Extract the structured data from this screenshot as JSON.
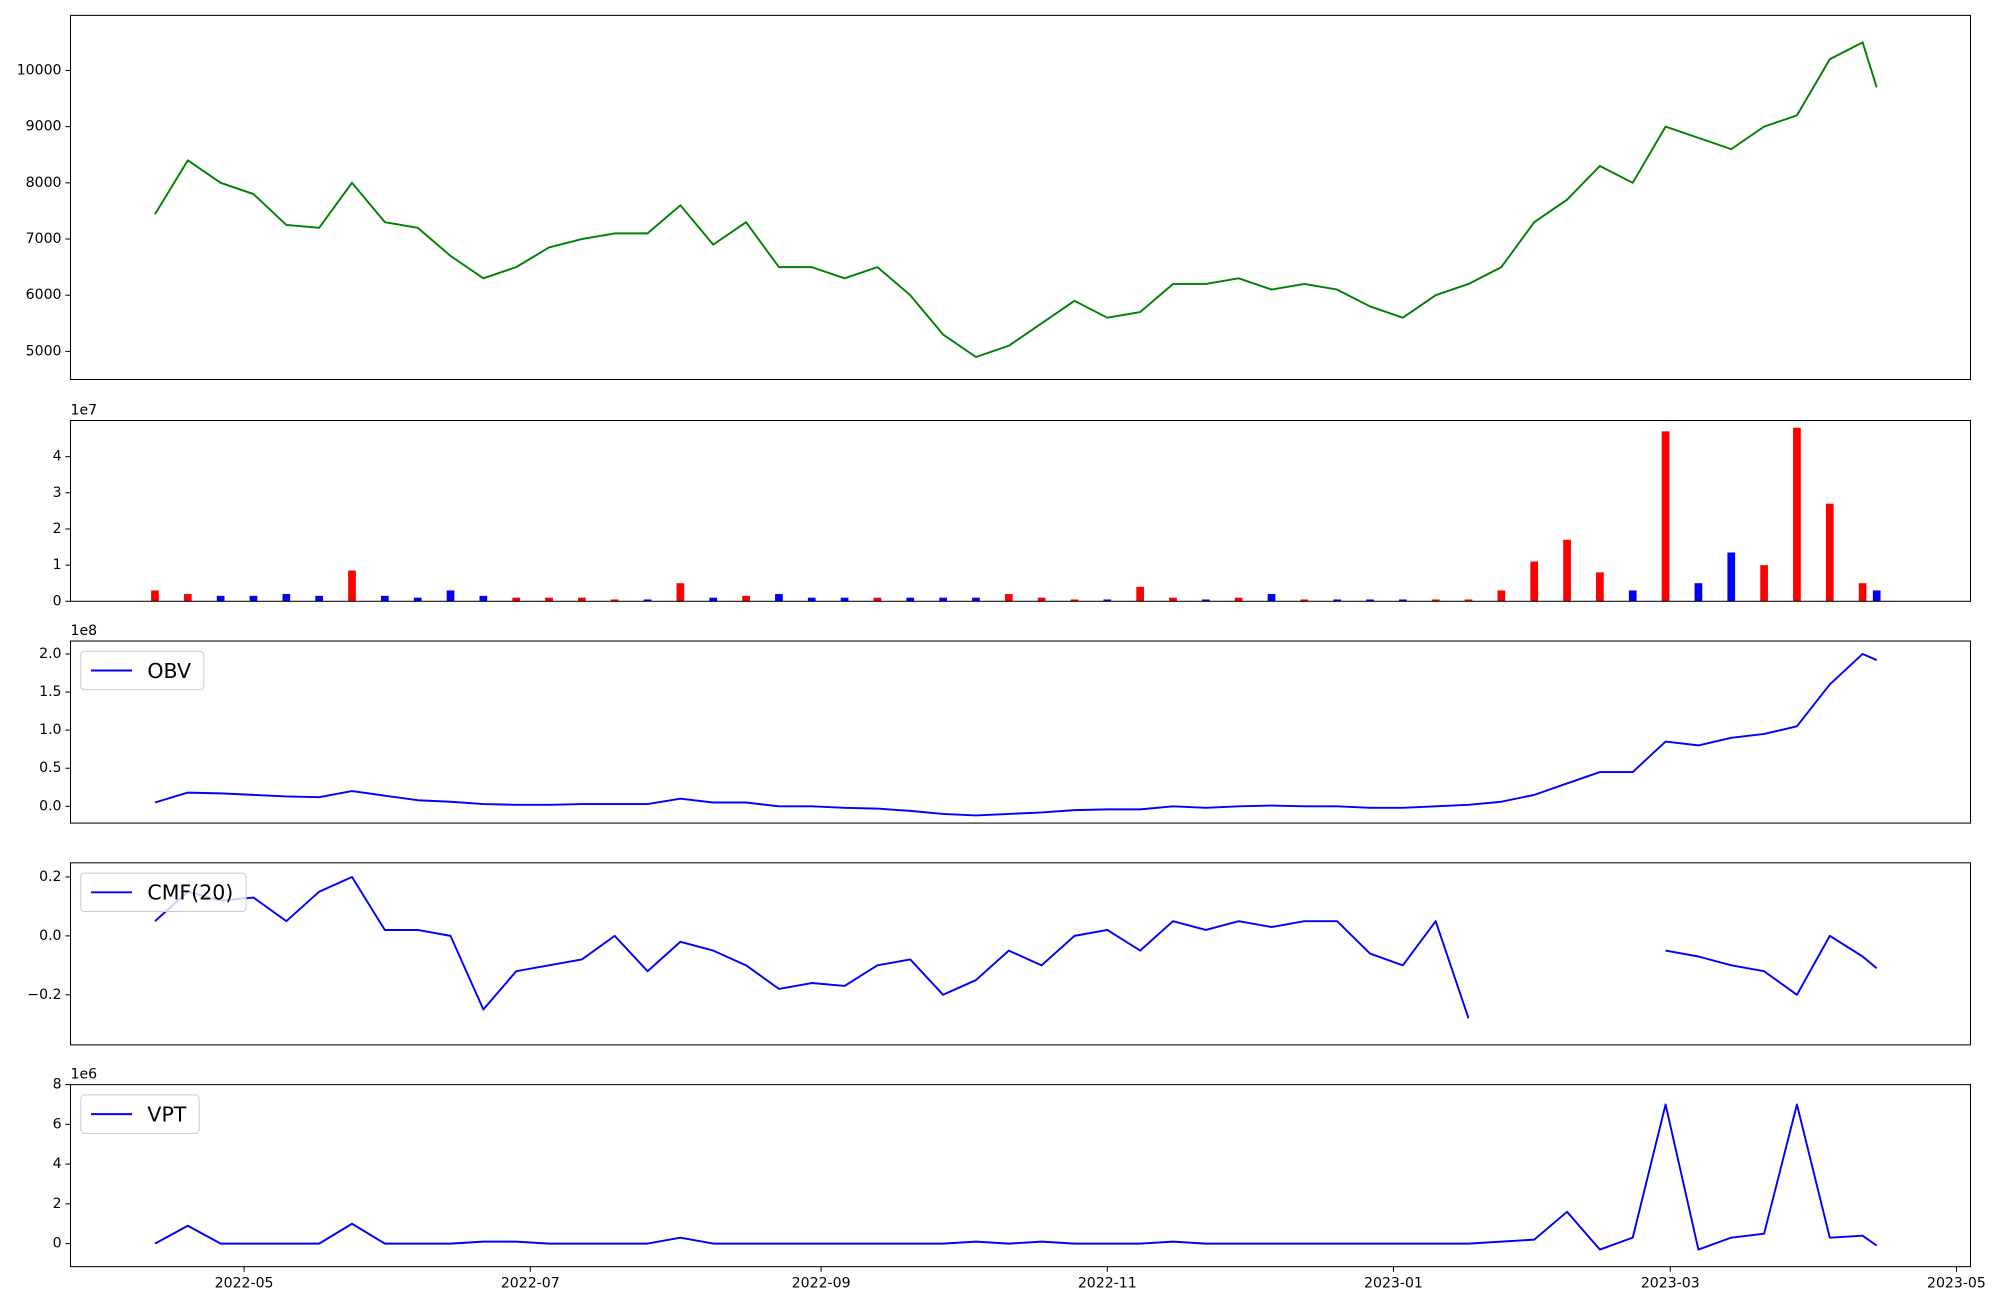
{
  "chart_data": [
    {
      "type": "line",
      "x": [
        "2022-04-12",
        "2022-04-19",
        "2022-04-26",
        "2022-05-03",
        "2022-05-10",
        "2022-05-17",
        "2022-05-24",
        "2022-05-31",
        "2022-06-07",
        "2022-06-14",
        "2022-06-21",
        "2022-06-28",
        "2022-07-05",
        "2022-07-12",
        "2022-07-19",
        "2022-07-26",
        "2022-08-02",
        "2022-08-09",
        "2022-08-16",
        "2022-08-23",
        "2022-08-30",
        "2022-09-06",
        "2022-09-13",
        "2022-09-20",
        "2022-09-27",
        "2022-10-04",
        "2022-10-11",
        "2022-10-18",
        "2022-10-25",
        "2022-11-01",
        "2022-11-08",
        "2022-11-15",
        "2022-11-22",
        "2022-11-29",
        "2022-12-06",
        "2022-12-13",
        "2022-12-20",
        "2022-12-27",
        "2023-01-03",
        "2023-01-10",
        "2023-01-17",
        "2023-01-24",
        "2023-01-31",
        "2023-02-07",
        "2023-02-14",
        "2023-02-21",
        "2023-02-28",
        "2023-03-07",
        "2023-03-14",
        "2023-03-21",
        "2023-03-28",
        "2023-04-04",
        "2023-04-11",
        "2023-04-14"
      ],
      "values": [
        7440,
        8400,
        8000,
        7800,
        7250,
        7200,
        8000,
        7300,
        7200,
        6700,
        6300,
        6500,
        6850,
        7000,
        7100,
        7100,
        7600,
        6900,
        7300,
        6500,
        6500,
        6300,
        6500,
        6000,
        5300,
        4900,
        5100,
        5500,
        5900,
        5600,
        5700,
        6200,
        6200,
        6300,
        6100,
        6200,
        6100,
        5800,
        5600,
        6000,
        6200,
        6500,
        7300,
        7700,
        8300,
        8000,
        9000,
        8800,
        8600,
        9000,
        9200,
        10200,
        10500,
        9700
      ],
      "color": "green",
      "xlim": [
        "2022-03-25",
        "2023-05-04"
      ],
      "ylim": [
        4500,
        10980
      ],
      "yticks": [
        5000,
        6000,
        7000,
        8000,
        9000,
        10000
      ]
    },
    {
      "type": "bar",
      "x": [
        "2022-04-12",
        "2022-04-19",
        "2022-04-26",
        "2022-05-03",
        "2022-05-10",
        "2022-05-17",
        "2022-05-24",
        "2022-05-31",
        "2022-06-07",
        "2022-06-14",
        "2022-06-21",
        "2022-06-28",
        "2022-07-05",
        "2022-07-12",
        "2022-07-19",
        "2022-07-26",
        "2022-08-02",
        "2022-08-09",
        "2022-08-16",
        "2022-08-23",
        "2022-08-30",
        "2022-09-06",
        "2022-09-13",
        "2022-09-20",
        "2022-09-27",
        "2022-10-04",
        "2022-10-11",
        "2022-10-18",
        "2022-10-25",
        "2022-11-01",
        "2022-11-08",
        "2022-11-15",
        "2022-11-22",
        "2022-11-29",
        "2022-12-06",
        "2022-12-13",
        "2022-12-20",
        "2022-12-27",
        "2023-01-03",
        "2023-01-10",
        "2023-01-17",
        "2023-01-24",
        "2023-01-31",
        "2023-02-07",
        "2023-02-14",
        "2023-02-21",
        "2023-02-28",
        "2023-03-07",
        "2023-03-14",
        "2023-03-21",
        "2023-03-28",
        "2023-04-04",
        "2023-04-11",
        "2023-04-14"
      ],
      "values": [
        0.3,
        0.2,
        0.15,
        0.15,
        0.2,
        0.15,
        0.85,
        0.15,
        0.1,
        0.3,
        0.15,
        0.1,
        0.1,
        0.1,
        0.05,
        0.05,
        0.5,
        0.1,
        0.15,
        0.2,
        0.1,
        0.1,
        0.1,
        0.1,
        0.1,
        0.1,
        0.2,
        0.1,
        0.05,
        0.05,
        0.4,
        0.1,
        0.05,
        0.1,
        0.2,
        0.05,
        0.05,
        0.05,
        0.05,
        0.05,
        0.05,
        0.3,
        1.1,
        1.7,
        0.8,
        0.3,
        4.7,
        0.5,
        1.35,
        1.0,
        4.8,
        2.7,
        0.5,
        0.3
      ],
      "colors": [
        "red",
        "red",
        "blue",
        "blue",
        "blue",
        "blue",
        "red",
        "blue",
        "blue",
        "blue",
        "blue",
        "red",
        "red",
        "red",
        "red",
        "blue",
        "red",
        "blue",
        "red",
        "blue",
        "blue",
        "blue",
        "red",
        "blue",
        "blue",
        "blue",
        "red",
        "red",
        "red",
        "blue",
        "red",
        "red",
        "blue",
        "red",
        "blue",
        "red",
        "blue",
        "blue",
        "blue",
        "red",
        "red",
        "red",
        "red",
        "red",
        "red",
        "blue",
        "red",
        "blue",
        "blue",
        "red",
        "red",
        "red",
        "red",
        "blue"
      ],
      "offset_label": "1e7",
      "xlim": [
        "2022-03-25",
        "2023-05-04"
      ],
      "ylim": [
        0,
        5
      ],
      "yticks": [
        0,
        1,
        2,
        3,
        4
      ]
    },
    {
      "type": "line",
      "x": [
        "2022-04-12",
        "2022-04-19",
        "2022-04-26",
        "2022-05-03",
        "2022-05-10",
        "2022-05-17",
        "2022-05-24",
        "2022-05-31",
        "2022-06-07",
        "2022-06-14",
        "2022-06-21",
        "2022-06-28",
        "2022-07-05",
        "2022-07-12",
        "2022-07-19",
        "2022-07-26",
        "2022-08-02",
        "2022-08-09",
        "2022-08-16",
        "2022-08-23",
        "2022-08-30",
        "2022-09-06",
        "2022-09-13",
        "2022-09-20",
        "2022-09-27",
        "2022-10-04",
        "2022-10-11",
        "2022-10-18",
        "2022-10-25",
        "2022-11-01",
        "2022-11-08",
        "2022-11-15",
        "2022-11-22",
        "2022-11-29",
        "2022-12-06",
        "2022-12-13",
        "2022-12-20",
        "2022-12-27",
        "2023-01-03",
        "2023-01-10",
        "2023-01-17",
        "2023-01-24",
        "2023-01-31",
        "2023-02-07",
        "2023-02-14",
        "2023-02-21",
        "2023-02-28",
        "2023-03-07",
        "2023-03-14",
        "2023-03-21",
        "2023-03-28",
        "2023-04-04",
        "2023-04-11",
        "2023-04-14"
      ],
      "series": [
        {
          "name": "OBV",
          "color": "blue",
          "values": [
            0.05,
            0.18,
            0.17,
            0.15,
            0.13,
            0.12,
            0.2,
            0.14,
            0.08,
            0.06,
            0.03,
            0.02,
            0.02,
            0.03,
            0.03,
            0.03,
            0.1,
            0.05,
            0.05,
            0.0,
            0.0,
            -0.02,
            -0.03,
            -0.06,
            -0.1,
            -0.12,
            -0.1,
            -0.08,
            -0.05,
            -0.04,
            -0.04,
            0.0,
            -0.02,
            0.0,
            0.01,
            0.0,
            0.0,
            -0.02,
            -0.02,
            0.0,
            0.02,
            0.06,
            0.15,
            0.3,
            0.45,
            0.45,
            0.85,
            0.8,
            0.9,
            0.95,
            1.05,
            1.6,
            2.0,
            1.92
          ]
        }
      ],
      "legend": "upper left",
      "offset_label": "1e8",
      "xlim": [
        "2022-03-25",
        "2023-05-04"
      ],
      "ylim": [
        -0.22,
        2.17
      ],
      "yticks": [
        {
          "value": 0,
          "label": "0.0"
        },
        {
          "value": 0.5,
          "label": "0.5"
        },
        {
          "value": 1,
          "label": "1.0"
        },
        {
          "value": 1.5,
          "label": "1.5"
        },
        {
          "value": 2,
          "label": "2.0"
        }
      ]
    },
    {
      "type": "line",
      "x": [
        "2022-04-12",
        "2022-04-19",
        "2022-04-26",
        "2022-05-03",
        "2022-05-10",
        "2022-05-17",
        "2022-05-24",
        "2022-05-31",
        "2022-06-07",
        "2022-06-14",
        "2022-06-21",
        "2022-06-28",
        "2022-07-05",
        "2022-07-12",
        "2022-07-19",
        "2022-07-26",
        "2022-08-02",
        "2022-08-09",
        "2022-08-16",
        "2022-08-23",
        "2022-08-30",
        "2022-09-06",
        "2022-09-13",
        "2022-09-20",
        "2022-09-27",
        "2022-10-04",
        "2022-10-11",
        "2022-10-18",
        "2022-10-25",
        "2022-11-01",
        "2022-11-08",
        "2022-11-15",
        "2022-11-22",
        "2022-11-29",
        "2022-12-06",
        "2022-12-13",
        "2022-12-20",
        "2022-12-27",
        "2023-01-03",
        "2023-01-10",
        "2023-01-17",
        "2023-01-24",
        "2023-01-31",
        "2023-02-07",
        "2023-02-14",
        "2023-02-21",
        "2023-02-28",
        "2023-03-07",
        "2023-03-14",
        "2023-03-21",
        "2023-03-28",
        "2023-04-04",
        "2023-04-11",
        "2023-04-14"
      ],
      "series": [
        {
          "name": "CMF(20)",
          "color": "blue",
          "values": [
            0.05,
            0.15,
            0.12,
            0.13,
            0.05,
            0.15,
            0.2,
            0.02,
            0.02,
            0.0,
            -0.25,
            -0.12,
            -0.1,
            -0.08,
            0.0,
            -0.12,
            -0.02,
            -0.05,
            -0.1,
            -0.18,
            -0.16,
            -0.17,
            -0.1,
            -0.08,
            -0.2,
            -0.15,
            -0.05,
            -0.1,
            0.0,
            0.02,
            -0.05,
            0.05,
            0.02,
            0.05,
            0.03,
            0.05,
            0.05,
            -0.06,
            -0.1,
            0.05,
            -0.28,
            null,
            null,
            null,
            null,
            null,
            -0.05,
            -0.07,
            -0.1,
            -0.12,
            -0.2,
            0.0,
            -0.07,
            -0.11
          ]
        }
      ],
      "legend": "upper left",
      "xlim": [
        "2022-03-25",
        "2023-05-04"
      ],
      "ylim": [
        -0.37,
        0.248
      ],
      "yticks": [
        {
          "value": -0.2,
          "label": "−0.2"
        },
        {
          "value": 0,
          "label": "0.0"
        },
        {
          "value": 0.2,
          "label": "0.2"
        }
      ]
    },
    {
      "type": "line",
      "x": [
        "2022-04-12",
        "2022-04-19",
        "2022-04-26",
        "2022-05-03",
        "2022-05-10",
        "2022-05-17",
        "2022-05-24",
        "2022-05-31",
        "2022-06-07",
        "2022-06-14",
        "2022-06-21",
        "2022-06-28",
        "2022-07-05",
        "2022-07-12",
        "2022-07-19",
        "2022-07-26",
        "2022-08-02",
        "2022-08-09",
        "2022-08-16",
        "2022-08-23",
        "2022-08-30",
        "2022-09-06",
        "2022-09-13",
        "2022-09-20",
        "2022-09-27",
        "2022-10-04",
        "2022-10-11",
        "2022-10-18",
        "2022-10-25",
        "2022-11-01",
        "2022-11-08",
        "2022-11-15",
        "2022-11-22",
        "2022-11-29",
        "2022-12-06",
        "2022-12-13",
        "2022-12-20",
        "2022-12-27",
        "2023-01-03",
        "2023-01-10",
        "2023-01-17",
        "2023-01-24",
        "2023-01-31",
        "2023-02-07",
        "2023-02-14",
        "2023-02-21",
        "2023-02-28",
        "2023-03-07",
        "2023-03-14",
        "2023-03-21",
        "2023-03-28",
        "2023-04-04",
        "2023-04-11",
        "2023-04-14"
      ],
      "series": [
        {
          "name": "VPT",
          "color": "blue",
          "values": [
            0,
            0.9,
            0,
            0,
            0,
            0,
            1.0,
            0,
            0,
            0,
            0.1,
            0.1,
            0,
            0,
            0,
            0,
            0.3,
            0,
            0,
            0,
            0,
            0,
            0,
            0,
            0,
            0.1,
            0,
            0.1,
            0,
            0,
            0,
            0.1,
            0,
            0,
            0,
            0,
            0,
            0,
            0,
            0,
            0,
            0.1,
            0.2,
            1.6,
            -0.3,
            0.3,
            7.0,
            -0.3,
            0.3,
            0.5,
            7.0,
            0.3,
            0.4,
            -0.1
          ]
        }
      ],
      "legend": "upper left",
      "offset_label": "1e6",
      "xlim": [
        "2022-03-25",
        "2023-05-04"
      ],
      "ylim": [
        -1.16,
        8
      ],
      "yticks": [
        0,
        2,
        4,
        6,
        8
      ],
      "xticks": [
        {
          "value": "2022-05-01",
          "label": "2022-05"
        },
        {
          "value": "2022-07-01",
          "label": "2022-07"
        },
        {
          "value": "2022-09-01",
          "label": "2022-09"
        },
        {
          "value": "2022-11-01",
          "label": "2022-11"
        },
        {
          "value": "2023-01-01",
          "label": "2023-01"
        },
        {
          "value": "2023-03-01",
          "label": "2023-03"
        },
        {
          "value": "2023-05-01",
          "label": "2023-05"
        }
      ]
    }
  ]
}
